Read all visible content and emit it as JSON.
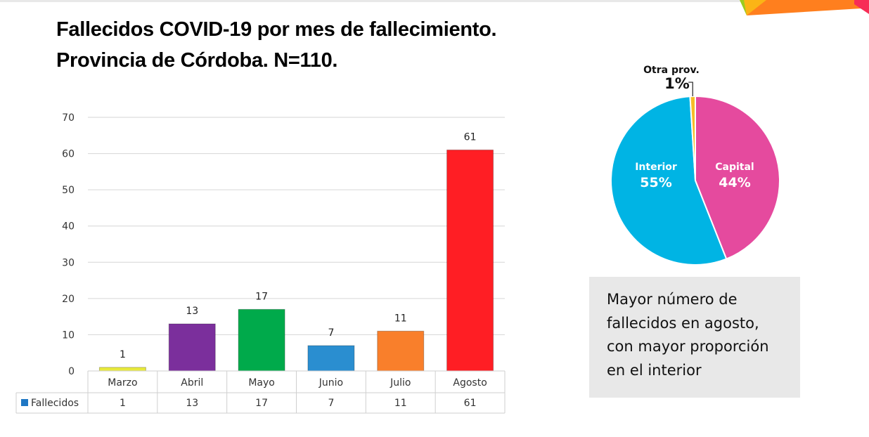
{
  "title": {
    "line1": "Fallecidos COVID-19 por mes de fallecimiento.",
    "line2": "Provincia de Córdoba. N=110."
  },
  "chart_data": [
    {
      "type": "bar",
      "title": "Fallecidos COVID-19 por mes de fallecimiento. Provincia de Córdoba. N=110.",
      "categories": [
        "Marzo",
        "Abril",
        "Mayo",
        "Junio",
        "Julio",
        "Agosto"
      ],
      "series": [
        {
          "name": "Fallecidos",
          "values": [
            1,
            13,
            17,
            7,
            11,
            61
          ],
          "legend_color": "#1f77c4"
        }
      ],
      "bar_colors": [
        "#e8ea3c",
        "#7b2f9c",
        "#00aa4b",
        "#2a8ed0",
        "#f97f2b",
        "#ff1e24"
      ],
      "data_labels": [
        "1",
        "13",
        "17",
        "7",
        "11",
        "61"
      ],
      "yticks": [
        "0",
        "10",
        "20",
        "30",
        "40",
        "50",
        "60",
        "70"
      ],
      "ylim": [
        0,
        70
      ],
      "grid": true,
      "data_table": {
        "legend_label": "Fallecidos",
        "values": [
          "1",
          "13",
          "17",
          "7",
          "11",
          "61"
        ]
      },
      "xlabel": "",
      "ylabel": ""
    },
    {
      "type": "pie",
      "slices": [
        {
          "name": "Capital",
          "label": "Capital",
          "pct_label": "44%",
          "value": 44,
          "color": "#e54a9e"
        },
        {
          "name": "Interior",
          "label": "Interior",
          "pct_label": "55%",
          "value": 55,
          "color": "#00b4e4"
        },
        {
          "name": "Otra prov.",
          "label": "Otra prov.",
          "pct_label": "1%",
          "value": 1,
          "color": "#f6bd27"
        }
      ]
    }
  ],
  "note": {
    "lines": [
      "Mayor número de",
      "fallecidos en agosto,",
      "con mayor proporción",
      "en el interior"
    ]
  }
}
